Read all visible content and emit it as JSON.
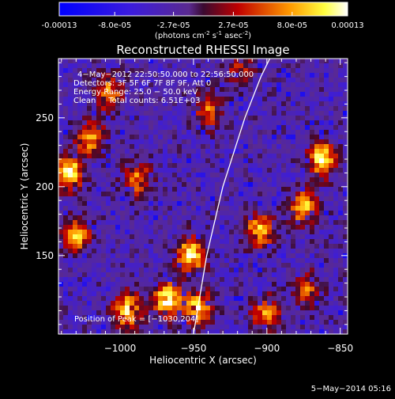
{
  "colorbar": {
    "tick_labels": [
      "-0.00013",
      "-8.0e-05",
      "-2.7e-05",
      "2.7e-05",
      "8.0e-05",
      "0.00013"
    ],
    "tick_values": [
      -0.00013,
      -8e-05,
      -2.7e-05,
      2.7e-05,
      8e-05,
      0.00013
    ],
    "units_prefix": "(photons cm",
    "units_exp1": "-2",
    "units_mid": " s",
    "units_exp2": "-1",
    "units_mid2": " asec",
    "units_exp3": "-2",
    "units_suffix": ")"
  },
  "chart_data": {
    "type": "heatmap",
    "title": "Reconstructed RHESSI Image",
    "xlabel": "Heliocentric X (arcsec)",
    "ylabel": "Heliocentric Y (arcsec)",
    "xlim": [
      -1042,
      -845
    ],
    "ylim": [
      93,
      293
    ],
    "x_ticks": [
      -1000,
      -950,
      -900,
      -850
    ],
    "x_tick_labels": [
      "−1000",
      "−950",
      "−900",
      "−850"
    ],
    "y_ticks": [
      150,
      200,
      250
    ],
    "y_tick_labels": [
      "150",
      "200",
      "250"
    ],
    "value_range": [
      -0.00013,
      0.00013
    ],
    "colormap": "blue-purple-red-yellow-white",
    "limb_curve": [
      [
        -950,
        93
      ],
      [
        -941,
        150
      ],
      [
        -930,
        200
      ],
      [
        -915,
        250
      ],
      [
        -904,
        280
      ],
      [
        -898,
        293
      ]
    ],
    "bright_regions": [
      {
        "x": -1035,
        "y": 210,
        "intensity": 1.0
      },
      {
        "x": -1030,
        "y": 165,
        "intensity": 0.75
      },
      {
        "x": -1020,
        "y": 235,
        "intensity": 0.7
      },
      {
        "x": -1008,
        "y": 268,
        "intensity": 0.65
      },
      {
        "x": -988,
        "y": 205,
        "intensity": 0.6
      },
      {
        "x": -968,
        "y": 118,
        "intensity": 1.0
      },
      {
        "x": -952,
        "y": 150,
        "intensity": 0.95
      },
      {
        "x": -947,
        "y": 112,
        "intensity": 0.85
      },
      {
        "x": -995,
        "y": 110,
        "intensity": 0.9
      },
      {
        "x": -940,
        "y": 255,
        "intensity": 0.55
      },
      {
        "x": -918,
        "y": 285,
        "intensity": 0.4
      },
      {
        "x": -905,
        "y": 168,
        "intensity": 0.8
      },
      {
        "x": -862,
        "y": 220,
        "intensity": 0.95
      },
      {
        "x": -875,
        "y": 185,
        "intensity": 0.8
      },
      {
        "x": -900,
        "y": 108,
        "intensity": 0.7
      },
      {
        "x": -872,
        "y": 125,
        "intensity": 0.55
      }
    ]
  },
  "annotation": {
    "line1": "4−May−2012 22:50:50.000 to 22:56:50.000",
    "line2": "Detectors: 3F 5F 6F 7F 8F 9F, Att 0",
    "line3": "Energy Range: 25.0 − 50.0 keV",
    "line4": "Clean     Total counts: 6.51E+03",
    "peak": "Position of Peak = [−1030,204]"
  },
  "footer": {
    "date": "5−May−2014 05:16"
  }
}
